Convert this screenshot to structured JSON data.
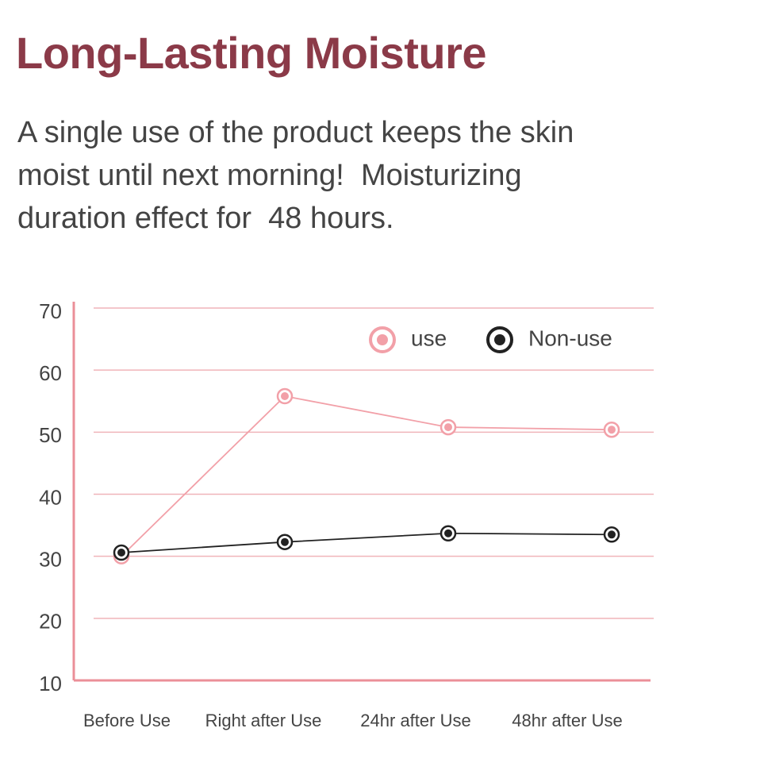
{
  "chart_data": {
    "type": "line",
    "title": "Long-Lasting Moisture",
    "subtitle": [
      "A single use of the product keeps the skin",
      "moist until next morning!  Moisturizing",
      "duration effect for  48 hours."
    ],
    "categories": [
      "Before Use",
      "Right after Use",
      "24hr after Use",
      "48hr after Use"
    ],
    "series": [
      {
        "name": "use",
        "color": "#f2a0a8",
        "values": [
          30,
          55.8,
          50.8,
          50.4
        ]
      },
      {
        "name": "Non-use",
        "color": "#222222",
        "values": [
          30.6,
          32.3,
          33.7,
          33.5
        ]
      }
    ],
    "ylim": [
      10,
      70
    ],
    "yticks": [
      10,
      20,
      30,
      40,
      50,
      60,
      70
    ],
    "grid": true,
    "legend": "top-right"
  }
}
